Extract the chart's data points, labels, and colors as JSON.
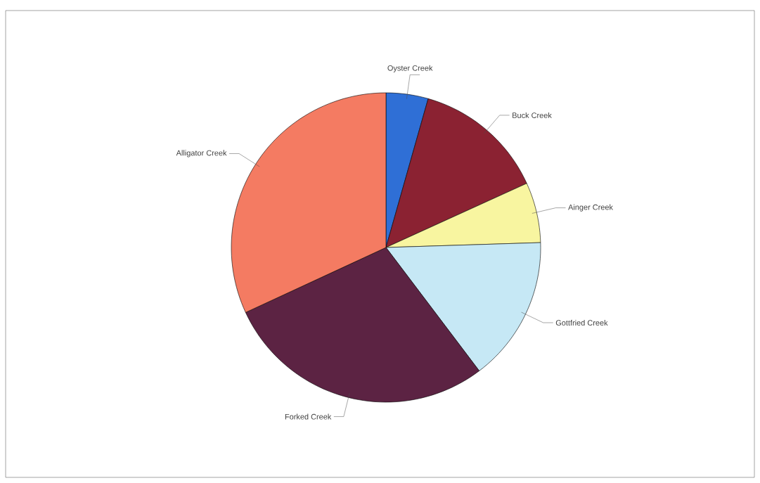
{
  "chart_data": {
    "type": "pie",
    "categories": [
      "Oyster Creek",
      "Buck Creek",
      "Ainger Creek",
      "Gottfried Creek",
      "Forked Creek",
      "Alligator Creek"
    ],
    "values": [
      4.4,
      13.8,
      6.3,
      15.2,
      28.4,
      31.9
    ],
    "colors": [
      "#2f6fd6",
      "#8b2232",
      "#f8f5a0",
      "#c6e8f5",
      "#5c2343",
      "#f47b62"
    ]
  }
}
